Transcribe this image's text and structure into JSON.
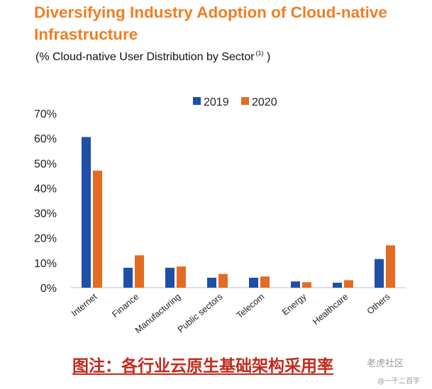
{
  "title": "Diversifying Industry Adoption of Cloud-native Infrastructure",
  "subtitle": "(% Cloud-native User Distribution by Sector",
  "subtitle_note": "(1)",
  "subtitle_close": " )",
  "caption": "图注：各行业云原生基础架构采用率",
  "watermark": "老虎社区",
  "watermark_sub": "@一千二百字",
  "colors": {
    "title": "#f07d22",
    "series_2019": "#1f4fa8",
    "series_2020": "#e46c22",
    "caption": "#c22a1c"
  },
  "chart_data": {
    "type": "bar",
    "categories": [
      "Internet",
      "Finance",
      "Manufacturing",
      "Public sectors",
      "Telecom",
      "Energy",
      "Healthcare",
      "Others"
    ],
    "series": [
      {
        "name": "2019",
        "values": [
          60.5,
          8,
          8,
          4,
          4,
          2.5,
          2,
          11.5
        ]
      },
      {
        "name": "2020",
        "values": [
          47,
          13,
          8.5,
          5.5,
          4.5,
          2.2,
          3,
          17
        ]
      }
    ],
    "y_ticks": [
      "0%",
      "10%",
      "20%",
      "30%",
      "40%",
      "50%",
      "60%",
      "70%"
    ],
    "ylim": [
      0,
      70
    ],
    "legend_position": "top-center",
    "grid": false
  }
}
